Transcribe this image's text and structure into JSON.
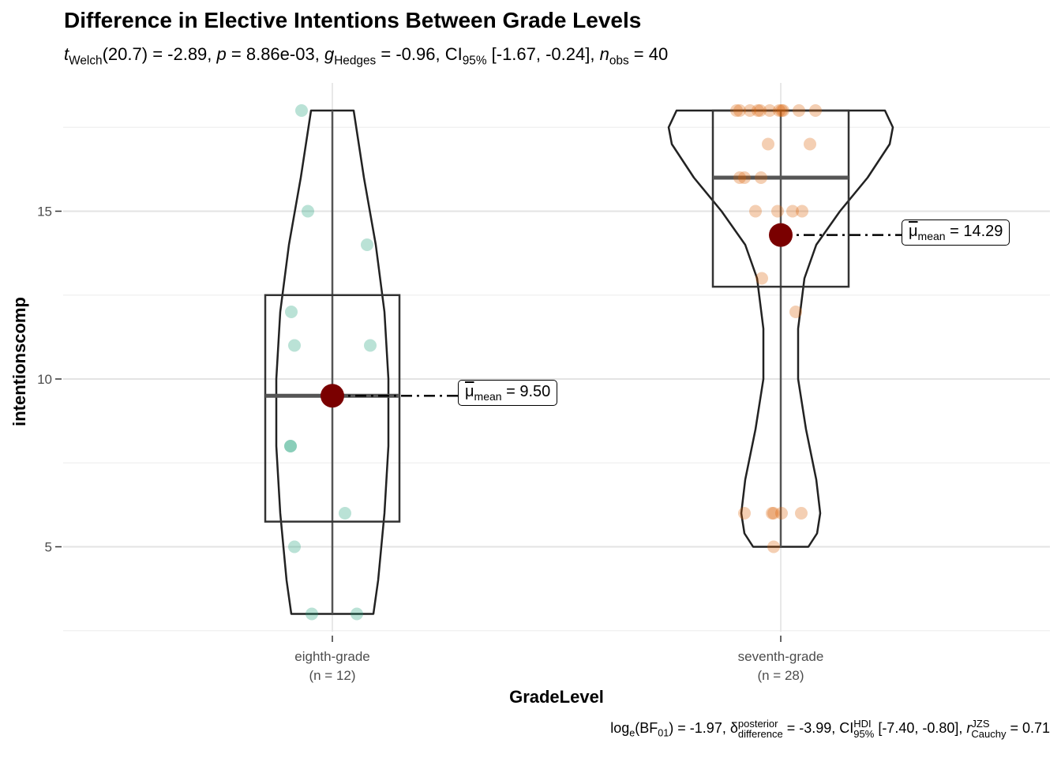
{
  "title": "Difference in Elective Intentions Between Grade Levels",
  "subtitle": {
    "t_sym": "t",
    "t_sub": "Welch",
    "t_val": "(20.7) = -2.89, ",
    "p_sym": "p",
    "p_val": " = 8.86e-03, ",
    "g_sym": "g",
    "g_sub": "Hedges",
    "g_val": " = -0.96, ",
    "ci": "CI",
    "ci_sub": "95%",
    "ci_val": " [-1.67, -0.24], ",
    "n_sym": "n",
    "n_sub": "obs",
    "n_val": " = 40"
  },
  "caption": {
    "log": "log",
    "log_sub": "e",
    "bf": "(BF",
    "bf_sub": "01",
    "bf_val": ") = -1.97, ",
    "delta": "δ",
    "delta_sup": "posterior",
    "delta_sub": "difference",
    "delta_val": " = -3.99, ",
    "ci": "CI",
    "ci_sup": "HDI",
    "ci_sub": "95%",
    "ci_val": " [-7.40, -0.80], ",
    "r": "r",
    "r_sup": "JZS",
    "r_sub": "Cauchy",
    "r_val": " = 0.71"
  },
  "chart_data": {
    "type": "violin-box-scatter",
    "xlabel": "GradeLevel",
    "ylabel": "intentionscomp",
    "ylim": [
      2.46,
      18.8
    ],
    "yticks": [
      "5",
      "10",
      "15"
    ],
    "grid": true,
    "colors": {
      "eighth-grade": "#1b9e77",
      "seventh-grade": "#d95f02",
      "mean": "#7a0000"
    },
    "groups": [
      {
        "name": "eighth-grade",
        "n_label": "(n = 12)",
        "values": [
          18,
          15,
          14,
          12,
          11,
          11,
          8,
          8,
          6,
          5,
          3,
          3
        ],
        "box": {
          "min": 3,
          "q1": 5.75,
          "median": 9.5,
          "q3": 12.5,
          "max": 18
        },
        "mean": 9.5,
        "mean_label": {
          "mu": "μ",
          "sub": "mean",
          "val": " = 9.50"
        }
      },
      {
        "name": "seventh-grade",
        "n_label": "(n = 28)",
        "values": [
          18,
          18,
          18,
          18,
          18,
          18,
          18,
          18,
          18,
          18,
          18,
          17,
          17,
          16,
          16,
          16,
          15,
          15,
          15,
          15,
          13,
          12,
          6,
          6,
          6,
          6,
          6,
          5
        ],
        "box": {
          "min": 5,
          "q1": 12.75,
          "median": 16,
          "q3": 18,
          "max": 18
        },
        "mean": 14.29,
        "mean_label": {
          "mu": "μ",
          "sub": "mean",
          "val": " = 14.29"
        }
      }
    ]
  }
}
